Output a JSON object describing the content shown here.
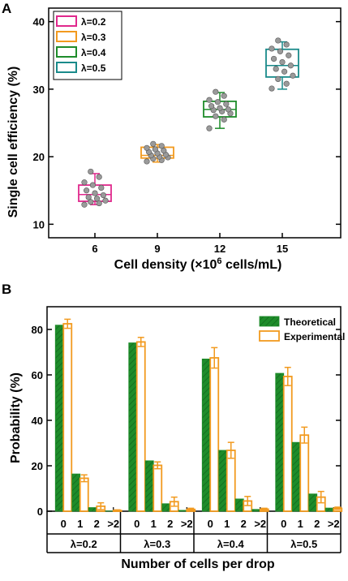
{
  "chart_data": [
    {
      "panel": "A",
      "type": "box",
      "xlabel": "Cell density (×10⁶ cells/mL)",
      "ylabel": "Single cell efficiency (%)",
      "categories": [
        "6",
        "9",
        "12",
        "15"
      ],
      "yticks": [
        "10",
        "20",
        "30",
        "40"
      ],
      "ylim": [
        8,
        42
      ],
      "grid": false,
      "legend_position": "top-left",
      "series": [
        {
          "name": "λ=0.2",
          "color": "#e0288c",
          "category": "6",
          "q1": 13.4,
          "median": 14.4,
          "q3": 15.8,
          "min": 12.9,
          "max": 17.5,
          "points": [
            12.9,
            13.1,
            13.3,
            13.5,
            13.8,
            14.0,
            14.3,
            14.6,
            15.0,
            15.4,
            15.8,
            16.2,
            17.0,
            17.8
          ]
        },
        {
          "name": "λ=0.3",
          "color": "#f29a1f",
          "category": "9",
          "q1": 19.8,
          "median": 20.2,
          "q3": 21.4,
          "min": 19.2,
          "max": 21.8,
          "points": [
            19.3,
            19.5,
            19.7,
            19.9,
            20.0,
            20.2,
            20.3,
            20.5,
            20.7,
            20.9,
            21.1,
            21.3,
            21.6,
            21.9
          ]
        },
        {
          "name": "λ=0.4",
          "color": "#1e8c2a",
          "category": "12",
          "q1": 25.9,
          "median": 27.0,
          "q3": 28.2,
          "min": 24.2,
          "max": 29.5,
          "points": [
            24.2,
            25.5,
            26.0,
            26.4,
            26.7,
            26.9,
            27.0,
            27.2,
            27.5,
            27.8,
            28.1,
            28.4,
            29.0,
            29.6
          ]
        },
        {
          "name": "λ=0.5",
          "color": "#1a8a8a",
          "category": "15",
          "q1": 31.8,
          "median": 33.5,
          "q3": 35.9,
          "min": 30.0,
          "max": 37.0,
          "points": [
            30.1,
            30.8,
            31.5,
            32.0,
            32.6,
            33.0,
            33.5,
            34.0,
            34.5,
            35.0,
            35.6,
            36.0,
            36.6,
            37.2
          ]
        }
      ]
    },
    {
      "panel": "B",
      "type": "bar",
      "xlabel": "Number of cells per drop",
      "ylabel": "Probability (%)",
      "ylim": [
        0,
        90
      ],
      "yticks": [
        "0",
        "20",
        "40",
        "60",
        "80"
      ],
      "grid": false,
      "legend_position": "top-right",
      "subcategories": [
        "0",
        "1",
        "2",
        ">2"
      ],
      "groups": [
        "λ=0.2",
        "λ=0.3",
        "λ=0.4",
        "λ=0.5"
      ],
      "series": [
        {
          "name": "Theoretical",
          "color": "#1e8c2a",
          "values": [
            [
              81.9,
              16.4,
              1.6,
              0.1
            ],
            [
              74.1,
              22.2,
              3.3,
              0.4
            ],
            [
              67.0,
              26.8,
              5.4,
              0.8
            ],
            [
              60.7,
              30.3,
              7.6,
              1.4
            ]
          ]
        },
        {
          "name": "Experimental",
          "color": "#f29a1f",
          "values": [
            [
              82.5,
              14.5,
              2.2,
              0.3
            ],
            [
              74.5,
              20.2,
              4.2,
              0.8
            ],
            [
              67.5,
              26.8,
              4.5,
              0.9
            ],
            [
              59.3,
              33.5,
              6.2,
              1.3
            ]
          ],
          "errors": [
            [
              2.0,
              1.5,
              1.5,
              0.3
            ],
            [
              2.0,
              1.5,
              2.0,
              0.5
            ],
            [
              4.5,
              3.5,
              2.0,
              0.4
            ],
            [
              4.0,
              3.5,
              2.5,
              0.5
            ]
          ]
        }
      ]
    }
  ]
}
